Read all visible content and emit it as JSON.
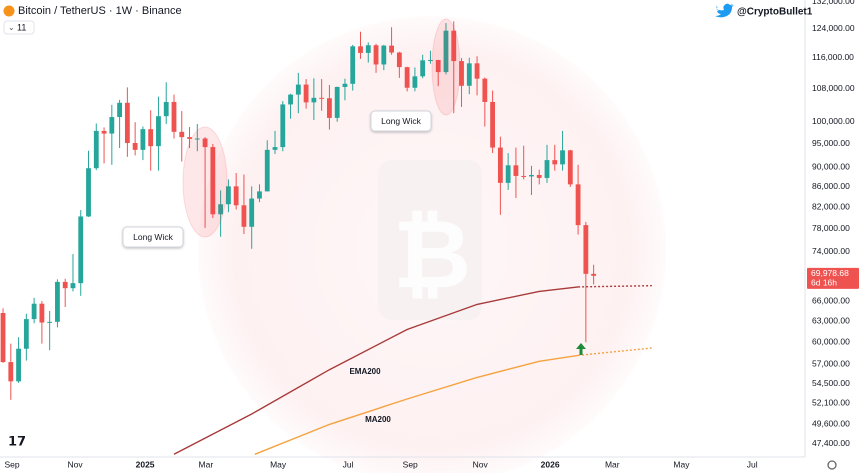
{
  "chart_data": {
    "type": "candlestick",
    "title": "Bitcoin / TetherUS · 1W · Binance",
    "badge": "11",
    "author": "@CryptoBullet1",
    "up_color": "#26a69a",
    "down_color": "#ef5350",
    "log_scale": true,
    "grid": false,
    "ohlc": [
      [
        64200,
        64900,
        57200,
        57300
      ],
      [
        57300,
        59800,
        52500,
        54800
      ],
      [
        54800,
        60700,
        54600,
        59100
      ],
      [
        59100,
        64100,
        57500,
        63300
      ],
      [
        63300,
        66500,
        62700,
        65600
      ],
      [
        65600,
        66000,
        59800,
        62800
      ],
      [
        62800,
        64500,
        58900,
        62900
      ],
      [
        62900,
        69400,
        62100,
        69000
      ],
      [
        69000,
        69500,
        65100,
        68000
      ],
      [
        68000,
        73600,
        67500,
        68800
      ],
      [
        68800,
        81500,
        66800,
        80300
      ],
      [
        80300,
        93500,
        80200,
        89800
      ],
      [
        89800,
        99600,
        89400,
        97900
      ],
      [
        97900,
        98700,
        90800,
        97300
      ],
      [
        97300,
        104000,
        90500,
        101100
      ],
      [
        101100,
        105200,
        94100,
        104500
      ],
      [
        104500,
        108300,
        92200,
        95200
      ],
      [
        95200,
        99900,
        92500,
        93700
      ],
      [
        93700,
        98900,
        91500,
        98300
      ],
      [
        98300,
        102700,
        89300,
        94500
      ],
      [
        94500,
        106000,
        89300,
        101300
      ],
      [
        101300,
        109600,
        99500,
        104700
      ],
      [
        104700,
        106500,
        96200,
        97700
      ],
      [
        97700,
        102500,
        91200,
        96500
      ],
      [
        96500,
        98800,
        94100,
        96100
      ],
      [
        96100,
        99500,
        93400,
        96200
      ],
      [
        96200,
        96500,
        78200,
        94300
      ],
      [
        94300,
        95000,
        80000,
        80700
      ],
      [
        80700,
        85300,
        76600,
        82600
      ],
      [
        82600,
        87500,
        81100,
        86100
      ],
      [
        86100,
        88800,
        81600,
        82400
      ],
      [
        82400,
        88500,
        77100,
        78400
      ],
      [
        78400,
        86100,
        74500,
        83700
      ],
      [
        83700,
        86500,
        83000,
        85100
      ],
      [
        85100,
        95800,
        85100,
        93700
      ],
      [
        93700,
        97900,
        92800,
        94300
      ],
      [
        94300,
        104900,
        93400,
        104100
      ],
      [
        104100,
        106700,
        100700,
        106500
      ],
      [
        106500,
        112000,
        102000,
        109000
      ],
      [
        109000,
        110400,
        103100,
        104600
      ],
      [
        104600,
        110600,
        100400,
        105700
      ],
      [
        105700,
        110400,
        102600,
        105600
      ],
      [
        105600,
        108900,
        98200,
        100900
      ],
      [
        100900,
        108500,
        100000,
        108400
      ],
      [
        108400,
        110500,
        105100,
        109200
      ],
      [
        109200,
        119500,
        107500,
        119100
      ],
      [
        119100,
        123200,
        115700,
        117300
      ],
      [
        117300,
        120200,
        114700,
        119400
      ],
      [
        119400,
        119800,
        112000,
        114200
      ],
      [
        114200,
        119500,
        112700,
        119300
      ],
      [
        119300,
        124500,
        116800,
        117400
      ],
      [
        117400,
        117600,
        110700,
        113500
      ],
      [
        113500,
        113600,
        107300,
        108200
      ],
      [
        108200,
        113400,
        107300,
        111100
      ],
      [
        111100,
        116800,
        110600,
        115300
      ],
      [
        115300,
        117900,
        114400,
        115400
      ],
      [
        115400,
        115400,
        108600,
        112200
      ],
      [
        112200,
        125700,
        111600,
        123500
      ],
      [
        123500,
        126200,
        102000,
        115100
      ],
      [
        115100,
        115900,
        103500,
        108700
      ],
      [
        108700,
        116000,
        106600,
        114500
      ],
      [
        114500,
        116400,
        106300,
        110500
      ],
      [
        110500,
        110800,
        98900,
        104700
      ],
      [
        104700,
        107500,
        93000,
        94200
      ],
      [
        94200,
        96600,
        80600,
        86800
      ],
      [
        86800,
        93000,
        85400,
        90400
      ],
      [
        90400,
        94200,
        83800,
        88200
      ],
      [
        88200,
        94600,
        87500,
        88100
      ],
      [
        88100,
        90300,
        84400,
        88400
      ],
      [
        88400,
        89500,
        86500,
        87800
      ],
      [
        87800,
        94800,
        86800,
        91500
      ],
      [
        91500,
        94800,
        89300,
        90600
      ],
      [
        90600,
        97900,
        89300,
        93600
      ],
      [
        93600,
        93700,
        86000,
        86500
      ],
      [
        86500,
        90500,
        77000,
        78700
      ],
      [
        78700,
        79300,
        60000,
        70300
      ],
      [
        70300,
        71800,
        68600,
        69978.68
      ]
    ],
    "lines": [
      {
        "name": "EMA200",
        "color": "#a83a3a",
        "x": [
          22,
          32,
          42,
          52,
          61,
          69,
          74,
          83.5
        ],
        "values": [
          46270,
          50800,
          56300,
          61800,
          65500,
          67500,
          68200,
          68400
        ]
      },
      {
        "name": "MA200",
        "color": "#f4a340",
        "x": [
          32.4,
          42,
          52,
          61,
          69,
          74,
          83.5
        ],
        "values": [
          46270,
          49600,
          52600,
          55300,
          57400,
          58200,
          59200
        ]
      }
    ],
    "last_price": {
      "value": 69978.68,
      "label": "69,978.68"
    },
    "countdown": "6d 16h",
    "annotations": [
      "Long Wick",
      "Long Wick"
    ],
    "xlim": [
      -0.39,
      103.2
    ],
    "xticks": [
      {
        "value": 1.16,
        "label": "Sep"
      },
      {
        "value": 9.27,
        "label": "Nov"
      },
      {
        "value": 18.28,
        "label": "2025"
      },
      {
        "value": 26.1,
        "label": "Mar"
      },
      {
        "value": 35.4,
        "label": "May"
      },
      {
        "value": 44.4,
        "label": "Jul"
      },
      {
        "value": 52.4,
        "label": "Sep"
      },
      {
        "value": 61.4,
        "label": "Nov"
      },
      {
        "value": 70.4,
        "label": "2026"
      },
      {
        "value": 78.4,
        "label": "Mar"
      },
      {
        "value": 87.3,
        "label": "May"
      },
      {
        "value": 96.4,
        "label": "Jul"
      }
    ],
    "ylim": [
      46200,
      132600
    ],
    "yticks": [
      {
        "value": 132000,
        "label": "132,000.00"
      },
      {
        "value": 124000,
        "label": "124,000.00"
      },
      {
        "value": 116000,
        "label": "116,000.00"
      },
      {
        "value": 108000,
        "label": "108,000.00"
      },
      {
        "value": 100000,
        "label": "100,000.00"
      },
      {
        "value": 95000,
        "label": "95,000.00"
      },
      {
        "value": 90000,
        "label": "90,000.00"
      },
      {
        "value": 86000,
        "label": "86,000.00"
      },
      {
        "value": 82000,
        "label": "82,000.00"
      },
      {
        "value": 78000,
        "label": "78,000.00"
      },
      {
        "value": 74000,
        "label": "74,000.00"
      },
      {
        "value": 66000,
        "label": "66,000.00"
      },
      {
        "value": 63000,
        "label": "63,000.00"
      },
      {
        "value": 60000,
        "label": "60,000.00"
      },
      {
        "value": 57000,
        "label": "57,000.00"
      },
      {
        "value": 54500,
        "label": "54,500.00"
      },
      {
        "value": 52100,
        "label": "52,100.00"
      },
      {
        "value": 49600,
        "label": "49,600.00"
      },
      {
        "value": 47400,
        "label": "47,400.00"
      }
    ]
  }
}
